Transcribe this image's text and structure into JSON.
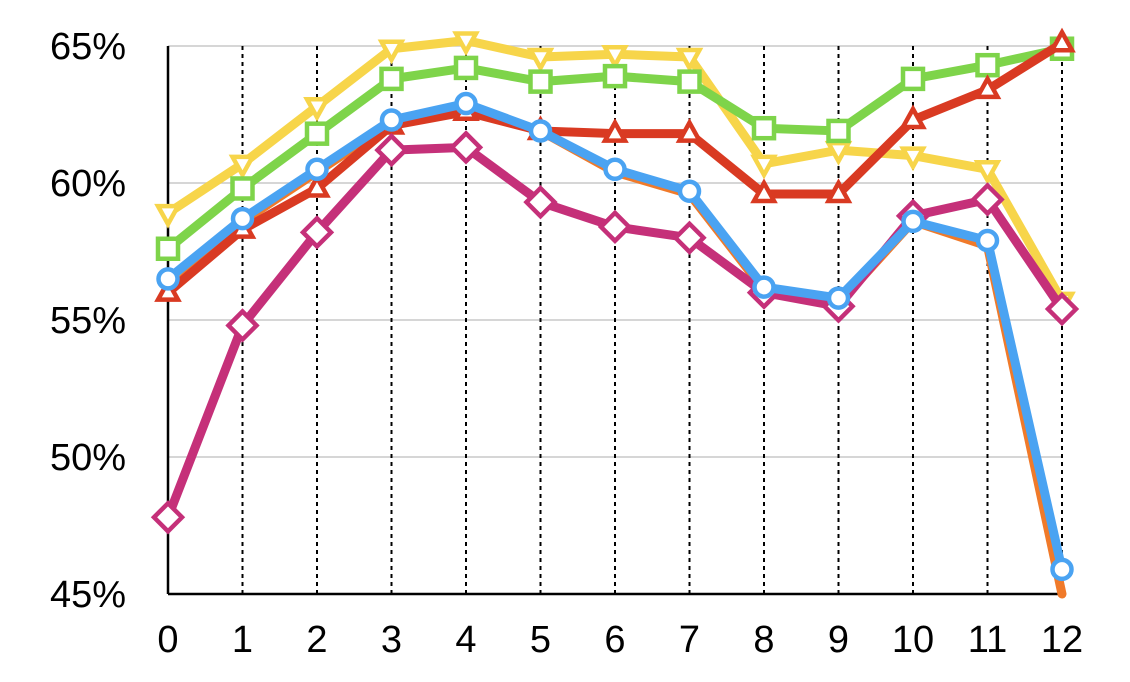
{
  "chart_data": {
    "type": "line",
    "title": "",
    "xlabel": "",
    "ylabel": "",
    "x": [
      0,
      1,
      2,
      3,
      4,
      5,
      6,
      7,
      8,
      9,
      10,
      11,
      12
    ],
    "x_tick_labels": [
      "0",
      "1",
      "2",
      "3",
      "4",
      "5",
      "6",
      "7",
      "8",
      "9",
      "10",
      "11",
      "12"
    ],
    "y_ticks": [
      45,
      50,
      55,
      60,
      65
    ],
    "y_tick_labels": [
      "45%",
      "50%",
      "55%",
      "60%",
      "65%"
    ],
    "ylim": [
      45,
      65
    ],
    "xlim": [
      0,
      12
    ],
    "y_unit": "%",
    "grid": {
      "horizontal": "solid",
      "vertical": "dotted"
    },
    "legend": "none",
    "series": [
      {
        "color": "#f07a2a",
        "marker": "none",
        "values": [
          56.0,
          58.6,
          60.4,
          62.2,
          62.8,
          61.9,
          60.4,
          59.6,
          56.1,
          55.6,
          58.6,
          57.7,
          45.0
        ]
      },
      {
        "color": "#f7d54a",
        "marker": "triangle-down",
        "values": [
          58.9,
          60.7,
          62.8,
          64.9,
          65.2,
          64.6,
          64.7,
          64.6,
          60.7,
          61.2,
          61.0,
          60.5,
          55.7
        ]
      },
      {
        "color": "#7ed44a",
        "marker": "square",
        "values": [
          57.6,
          59.8,
          61.8,
          63.8,
          64.2,
          63.7,
          63.9,
          63.7,
          62.0,
          61.9,
          63.8,
          64.3,
          64.9
        ]
      },
      {
        "color": "#d93a22",
        "marker": "triangle-up",
        "values": [
          56.0,
          58.3,
          59.8,
          62.1,
          62.6,
          61.9,
          61.8,
          61.8,
          59.6,
          59.6,
          62.3,
          63.4,
          65.1
        ]
      },
      {
        "color": "#c53079",
        "marker": "diamond",
        "values": [
          47.8,
          54.8,
          58.2,
          61.2,
          61.3,
          59.3,
          58.4,
          58.0,
          56.0,
          55.5,
          58.8,
          59.4,
          55.4
        ]
      },
      {
        "color": "#4aa3f2",
        "marker": "circle",
        "values": [
          56.5,
          58.7,
          60.5,
          62.3,
          62.9,
          61.9,
          60.5,
          59.7,
          56.2,
          55.8,
          58.6,
          57.9,
          45.9
        ]
      }
    ]
  }
}
